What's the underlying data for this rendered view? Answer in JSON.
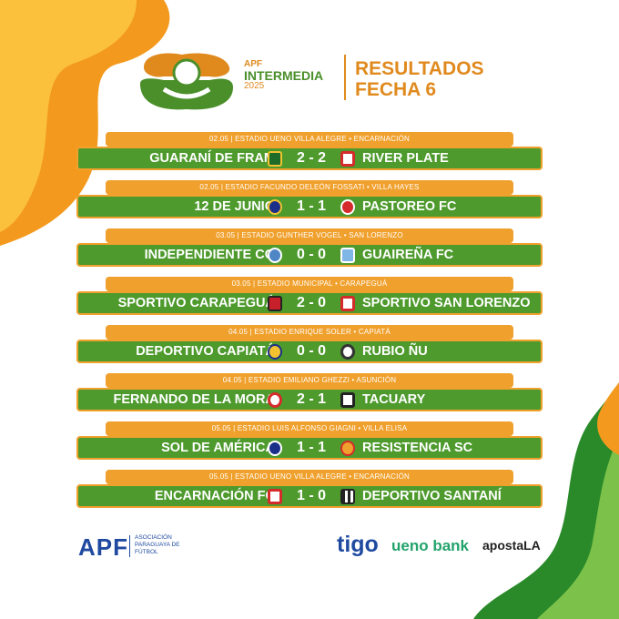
{
  "header": {
    "brand_small": "APF",
    "brand_main": "INTERMEDIA",
    "brand_year": "2025",
    "title_line1": "RESULTADOS",
    "title_line2": "FECHA 6"
  },
  "colors": {
    "orange": "#f0a02c",
    "green": "#4e9a2d",
    "brand_blue": "#1f4aa0"
  },
  "matches": [
    {
      "info": "02.05 | ESTADIO UENO VILLA ALEGRE • ENCARNACIÓN",
      "home": "GUARANÍ DE FRAM",
      "score": "2 - 2",
      "away": "RIVER PLATE"
    },
    {
      "info": "02.05 | ESTADIO FACUNDO DELEÓN FOSSATI • VILLA HAYES",
      "home": "12 DE JUNIO",
      "score": "1 - 1",
      "away": "PASTOREO FC"
    },
    {
      "info": "03.05 | ESTADIO GUNTHER VOGEL • SAN LORENZO",
      "home": "INDEPENDIENTE CG",
      "score": "0 - 0",
      "away": "GUAIREÑA FC"
    },
    {
      "info": "03.05 | ESTADIO MUNICIPAL • CARAPEGUÁ",
      "home": "SPORTIVO CARAPEGUÁ",
      "score": "2 - 0",
      "away": "SPORTIVO SAN LORENZO"
    },
    {
      "info": "04.05 | ESTADIO ENRIQUE SOLER • CAPIATÁ",
      "home": "DEPORTIVO CAPIATÁ",
      "score": "0 - 0",
      "away": "RUBIO ÑU"
    },
    {
      "info": "04.05 | ESTADIO EMILIANO GHEZZI • ASUNCIÓN",
      "home": "FERNANDO DE LA MORA",
      "score": "2 - 1",
      "away": "TACUARY"
    },
    {
      "info": "05.05 | ESTADIO LUIS ALFONSO GIAGNI • VILLA ELISA",
      "home": "SOL DE AMÉRICA",
      "score": "1 - 1",
      "away": "RESISTENCIA SC"
    },
    {
      "info": "05.05 | ESTADIO UENO VILLA ALEGRE • ENCARNACIÓN",
      "home": "ENCARNACIÓN FC",
      "score": "1 - 0",
      "away": "DEPORTIVO SANTANÍ"
    }
  ],
  "footer": {
    "apf_logo": "APF",
    "apf_full": "ASOCIACIÓN PARAGUAYA DE FÚTBOL",
    "sponsor1": "tigo",
    "sponsor2": "ueno bank",
    "sponsor3": "apostaLA"
  }
}
